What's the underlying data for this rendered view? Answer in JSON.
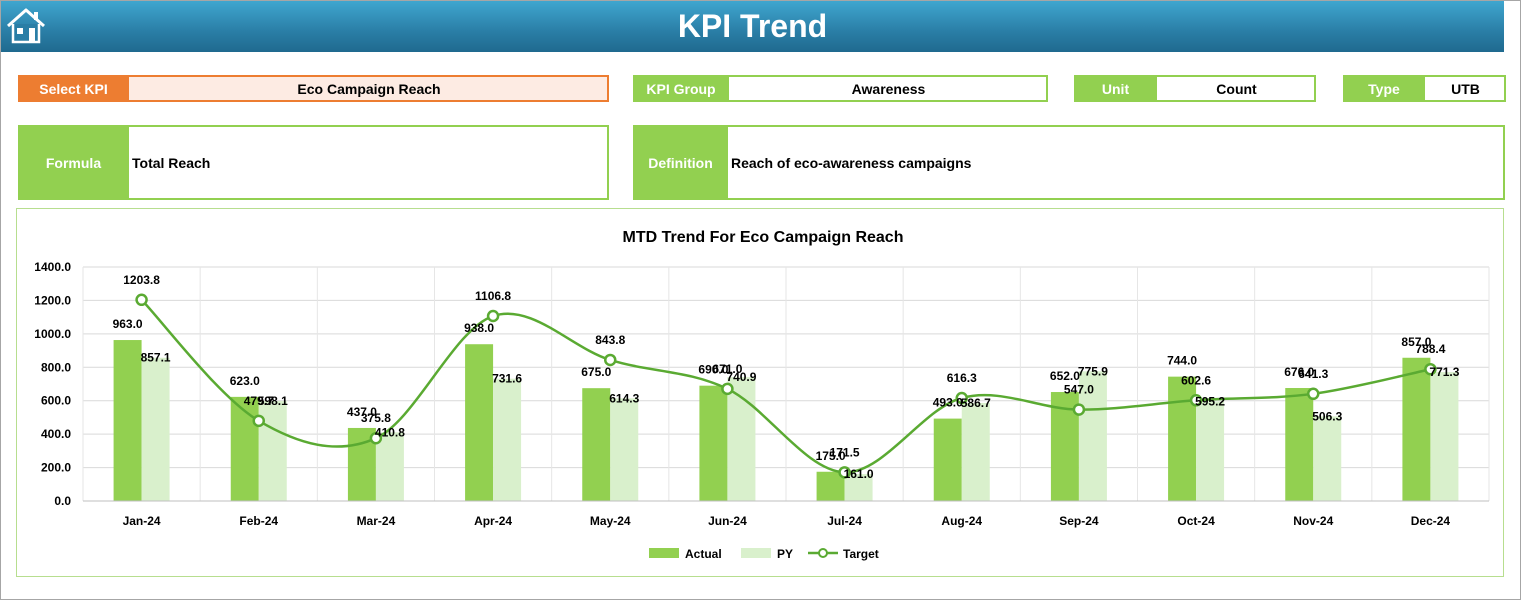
{
  "header": {
    "title": "KPI Trend",
    "home_icon": "home-icon"
  },
  "selectors": {
    "select_kpi_label": "Select KPI",
    "select_kpi_value": "Eco Campaign Reach",
    "kpi_group_label": "KPI Group",
    "kpi_group_value": "Awareness",
    "unit_label": "Unit",
    "unit_value": "Count",
    "type_label": "Type",
    "type_value": "UTB"
  },
  "info": {
    "formula_label": "Formula",
    "formula_value": "Total Reach",
    "definition_label": "Definition",
    "definition_value": "Reach of eco-awareness campaigns"
  },
  "colors": {
    "select_kpi_accent": "#ed7d31",
    "select_kpi_fill": "#fdebe3",
    "green": "#92d050",
    "actual": "#92d050",
    "py": "#d9f0cc",
    "target": "#5aaa32"
  },
  "chart_data": {
    "type": "bar",
    "title": "MTD Trend For Eco Campaign Reach",
    "categories": [
      "Jan-24",
      "Feb-24",
      "Mar-24",
      "Apr-24",
      "May-24",
      "Jun-24",
      "Jul-24",
      "Aug-24",
      "Sep-24",
      "Oct-24",
      "Nov-24",
      "Dec-24"
    ],
    "series": [
      {
        "name": "Actual",
        "type": "bar",
        "values": [
          963.0,
          623.0,
          437.0,
          938.0,
          675.0,
          690.0,
          175.0,
          493.0,
          652.0,
          744.0,
          676.0,
          857.0
        ]
      },
      {
        "name": "PY",
        "type": "bar",
        "values": [
          857.1,
          598.1,
          410.8,
          731.6,
          614.3,
          740.9,
          161.0,
          586.7,
          775.9,
          595.2,
          506.3,
          771.3
        ]
      },
      {
        "name": "Target",
        "type": "line",
        "values": [
          1203.8,
          479.7,
          375.8,
          1106.8,
          843.8,
          671.0,
          171.5,
          616.3,
          547.0,
          602.6,
          641.3,
          788.4
        ]
      }
    ],
    "ylim": [
      0,
      1400
    ],
    "yticks": [
      "0.0",
      "200.0",
      "400.0",
      "600.0",
      "800.0",
      "1000.0",
      "1200.0",
      "1400.0"
    ],
    "xlabel": "",
    "ylabel": "",
    "grid": true,
    "legend": "bottom",
    "legend_entries": [
      "Actual",
      "PY",
      "Target"
    ],
    "labels": {
      "actual": [
        "963.0",
        "623.0",
        "437.0",
        "938.0",
        "675.0",
        "690.0",
        "175.0",
        "493.0",
        "652.0",
        "744.0",
        "676.0",
        "857.0"
      ],
      "py": [
        "857.1",
        "598.1",
        "410.8",
        "731.6",
        "614.3",
        "740.9",
        "161.0",
        "586.7",
        "775.9",
        "595.2",
        "506.3",
        "771.3"
      ],
      "target": [
        "1203.8",
        "479.7",
        "375.8",
        "1106.8",
        "843.8",
        "671.0",
        "171.5",
        "616.3",
        "547.0",
        "602.6",
        "641.3",
        "788.4"
      ]
    }
  }
}
